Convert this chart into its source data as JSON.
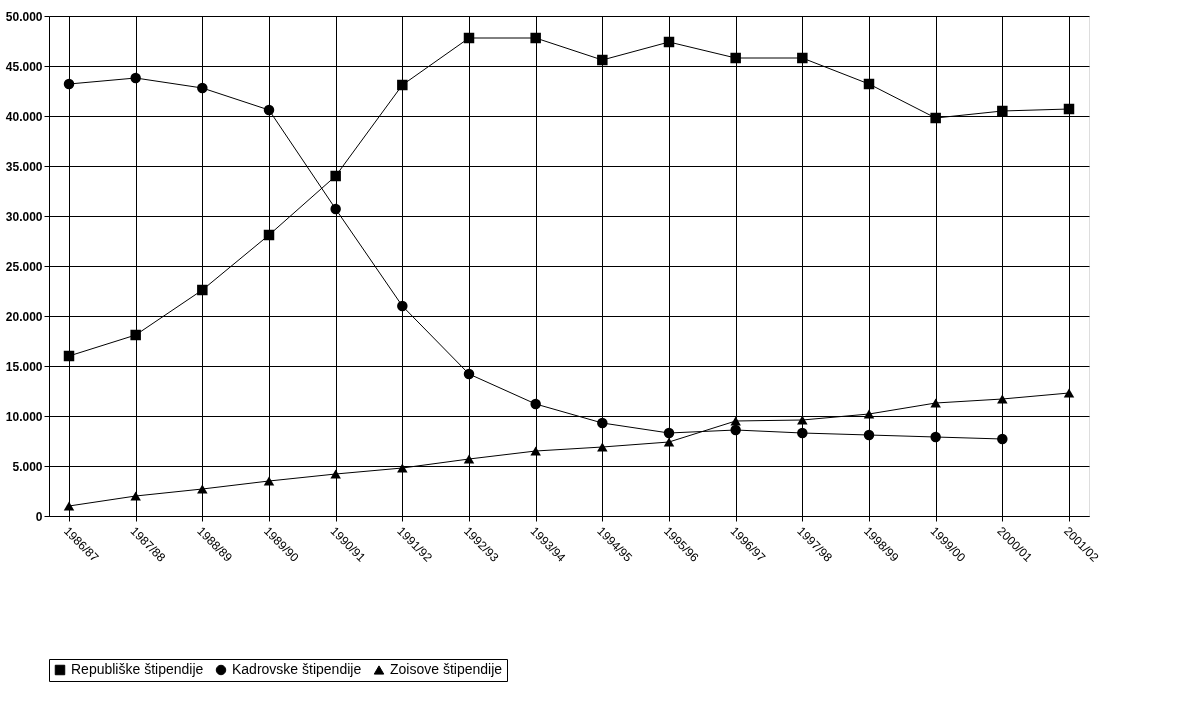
{
  "chart_data": {
    "type": "line",
    "categories": [
      "1986/87",
      "1987/88",
      "1988/89",
      "1989/90",
      "1990/91",
      "1991/92",
      "1992/93",
      "1993/94",
      "1994/95",
      "1995/96",
      "1996/97",
      "1997/98",
      "1998/99",
      "1999/00",
      "2000/01",
      "2001/02"
    ],
    "series": [
      {
        "name": "Republiške štipendije",
        "color": "#000000",
        "marker": "square",
        "values": [
          16000,
          18100,
          22600,
          28100,
          34000,
          43100,
          47800,
          47800,
          45600,
          47400,
          45800,
          45800,
          43200,
          39800,
          40500,
          40700
        ]
      },
      {
        "name": "Kadrovske štipendije",
        "color": "#000000",
        "marker": "circle",
        "values": [
          43200,
          43800,
          42800,
          40600,
          30700,
          21000,
          14200,
          11200,
          9300,
          8300,
          8600,
          8300,
          8100,
          7900,
          7700,
          null
        ]
      },
      {
        "name": "Zoisove štipendije",
        "color": "#000000",
        "marker": "triangle",
        "values": [
          1000,
          2000,
          2700,
          3500,
          4200,
          4800,
          5700,
          6500,
          6900,
          7400,
          9500,
          9600,
          10200,
          11300,
          11700,
          12300
        ]
      }
    ],
    "ylim": [
      0,
      50000
    ],
    "yticks": [
      0,
      {
        "value": 5000,
        "label": "5.000"
      },
      {
        "value": 10000,
        "label": "10.000"
      },
      {
        "value": 15000,
        "label": "15.000"
      },
      {
        "value": 20000,
        "label": "20.000"
      },
      {
        "value": 25000,
        "label": "25.000"
      },
      {
        "value": 30000,
        "label": "30.000"
      },
      {
        "value": 35000,
        "label": "35.000"
      },
      {
        "value": 40000,
        "label": "40.000"
      },
      {
        "value": 45000,
        "label": "45.000"
      },
      {
        "value": 50000,
        "label": "50.000"
      }
    ],
    "grid": true,
    "legend": "bottom",
    "line_style": "solid"
  }
}
